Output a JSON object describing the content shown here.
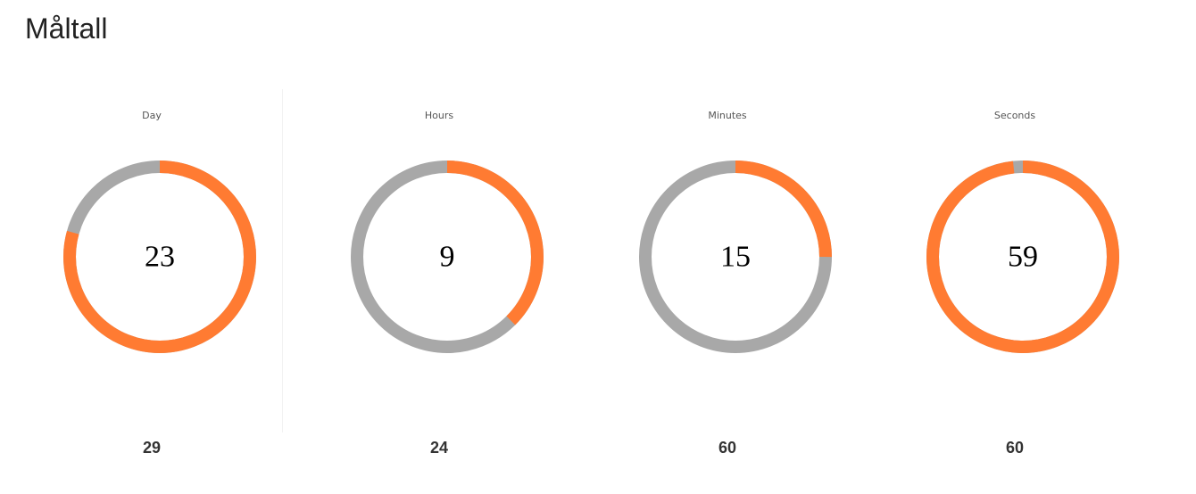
{
  "page": {
    "title": "Måltall"
  },
  "colors": {
    "filled": "#ff7b32",
    "track": "#a8a8a8",
    "text": "#000000"
  },
  "gauges": [
    {
      "label": "Day",
      "value": "23",
      "max": "29",
      "fraction": 0.7931
    },
    {
      "label": "Hours",
      "value": "9",
      "max": "24",
      "fraction": 0.375
    },
    {
      "label": "Minutes",
      "value": "15",
      "max": "60",
      "fraction": 0.25
    },
    {
      "label": "Seconds",
      "value": "59",
      "max": "60",
      "fraction": 0.9833
    }
  ]
}
